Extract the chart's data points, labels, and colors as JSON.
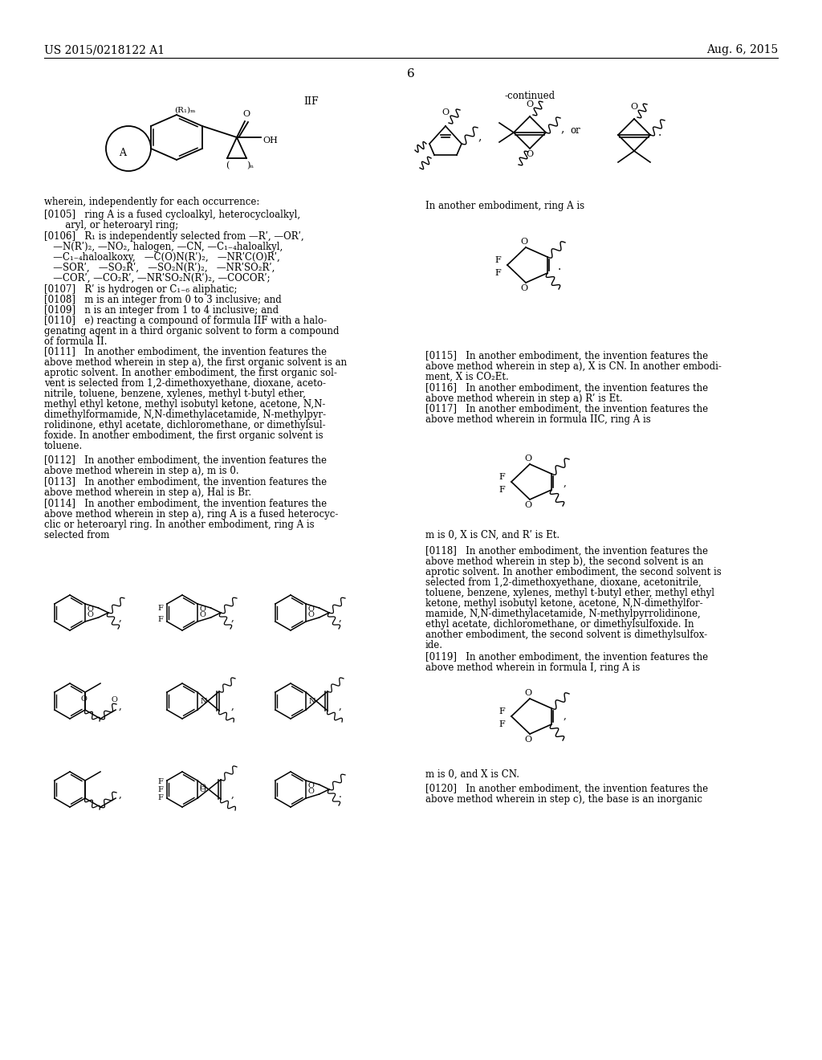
{
  "background_color": "#ffffff",
  "header_left": "US 2015/0218122 A1",
  "header_right": "Aug. 6, 2015",
  "page_number": "6",
  "continued_label": "-continued",
  "iif_label": "IIF",
  "para_0105": "[0105]   ring A is a fused cycloalkyl, heterocycloalkyl,\n       aryl, or heteroaryl ring;",
  "para_0106_1": "[0106]   R₁ is independently selected from —Rʹ, —ORʹ,",
  "para_0106_2": "   —N(Rʹ)₂, —NO₂, halogen, —CN, —C₁₋₄haloalkyl,",
  "para_0106_3": "   —C₁₋₄haloalkoxy,   —C(O)N(Rʹ)₂,   —NRʹC(O)Rʹ,",
  "para_0106_4": "   —SORʹ,   —SO₂Rʹ,   —SO₂N(Rʹ)₂,   —NRʹSO₂Rʹ,",
  "para_0106_5": "   —CORʹ, —CO₂Rʹ, —NRʹSO₂N(Rʹ)₂, —COCORʹ;",
  "para_0107": "[0107]   Rʹ is hydrogen or C₁₋₆ aliphatic;",
  "para_0108": "[0108]   m is an integer from 0 to 3 inclusive; and",
  "para_0109": "[0109]   n is an integer from 1 to 4 inclusive; and",
  "para_0110_1": "[0110]   e) reacting a compound of formula IIF with a halo-",
  "para_0110_2": "genating agent in a third organic solvent to form a compound",
  "para_0110_3": "of formula II.",
  "para_0111_1": "[0111]   In another embodiment, the invention features the",
  "para_0111_2": "above method wherein in step a), the first organic solvent is an",
  "para_0111_3": "aprotic solvent. In another embodiment, the first organic sol-",
  "para_0111_4": "vent is selected from 1,2-dimethoxyethane, dioxane, aceto-",
  "para_0111_5": "nitrile, toluene, benzene, xylenes, methyl t-butyl ether,",
  "para_0111_6": "methyl ethyl ketone, methyl isobutyl ketone, acetone, N,N-",
  "para_0111_7": "dimethylformamide, N,N-dimethylacetamide, N-methylpyr-",
  "para_0111_8": "rolidinone, ethyl acetate, dichloromethane, or dimethylsul-",
  "para_0111_9": "foxide. In another embodiment, the first organic solvent is",
  "para_0111_10": "toluene.",
  "para_0112_1": "[0112]   In another embodiment, the invention features the",
  "para_0112_2": "above method wherein in step a), m is 0.",
  "para_0113_1": "[0113]   In another embodiment, the invention features the",
  "para_0113_2": "above method wherein in step a), Hal is Br.",
  "para_0114_1": "[0114]   In another embodiment, the invention features the",
  "para_0114_2": "above method wherein in step a), ring A is a fused heterocyc-",
  "para_0114_3": "clic or heteroaryl ring. In another embodiment, ring A is",
  "para_0114_4": "selected from",
  "para_0115_1": "[0115]   In another embodiment, the invention features the",
  "para_0115_2": "above method wherein in step a), X is CN. In another embodi-",
  "para_0115_3": "ment, X is CO₂Et.",
  "para_0116_1": "[0116]   In another embodiment, the invention features the",
  "para_0116_2": "above method wherein in step a) Rʹ is Et.",
  "para_0117_1": "[0117]   In another embodiment, the invention features the",
  "para_0117_2": "above method wherein in formula IIC, ring A is",
  "para_0117_sub": "m is 0, X is CN, and Rʹ is Et.",
  "para_0118_1": "[0118]   In another embodiment, the invention features the",
  "para_0118_2": "above method wherein in step b), the second solvent is an",
  "para_0118_3": "aprotic solvent. In another embodiment, the second solvent is",
  "para_0118_4": "selected from 1,2-dimethoxyethane, dioxane, acetonitrile,",
  "para_0118_5": "toluene, benzene, xylenes, methyl t-butyl ether, methyl ethyl",
  "para_0118_6": "ketone, methyl isobutyl ketone, acetone, N,N-dimethylfor-",
  "para_0118_7": "mamide, N,N-dimethylacetamide, N-methylpyrrolidinone,",
  "para_0118_8": "ethyl acetate, dichloromethane, or dimethylsulfoxide. In",
  "para_0118_9": "another embodiment, the second solvent is dimethylsulfox-",
  "para_0118_10": "ide.",
  "para_0119_1": "[0119]   In another embodiment, the invention features the",
  "para_0119_2": "above method wherein in formula I, ring A is",
  "para_0119_sub": "m is 0, and X is CN.",
  "para_0120_1": "[0120]   In another embodiment, the invention features the",
  "para_0120_2": "above method wherein in step c), the base is an inorganic",
  "in_another_embodiment_ring_a": "In another embodiment, ring A is"
}
